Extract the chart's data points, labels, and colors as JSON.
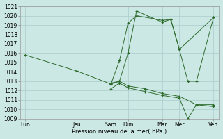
{
  "xlabel": "Pression niveau de la mer( hPa )",
  "background_color": "#cce8e4",
  "grid_color": "#aacccc",
  "line_color": "#2d6b2d",
  "x_tick_positions": [
    0,
    3,
    5,
    6,
    8,
    9,
    11
  ],
  "x_labels": [
    "Lun",
    "Jeu",
    "Sam",
    "Dim",
    "Mar",
    "Mer",
    "Ven"
  ],
  "ylim_low": 1009,
  "ylim_high": 1021,
  "yticks": [
    1009,
    1010,
    1011,
    1012,
    1013,
    1014,
    1015,
    1016,
    1017,
    1018,
    1019,
    1020,
    1021
  ],
  "s1_x": [
    0,
    3,
    5,
    5.5,
    6,
    6.5,
    8,
    8.5,
    9,
    11
  ],
  "s1_y": [
    1015.8,
    1014.1,
    1012.7,
    1015.2,
    1019.2,
    1020.0,
    1019.5,
    1019.6,
    1016.4,
    1019.8
  ],
  "s2_x": [
    5,
    5.5,
    6,
    6.5,
    8,
    8.5,
    9,
    9.5,
    10,
    11
  ],
  "s2_y": [
    1012.8,
    1013.0,
    1016.0,
    1020.5,
    1019.3,
    1019.6,
    1016.4,
    1013.0,
    1013.0,
    1019.8
  ],
  "s3_x": [
    5,
    5.5,
    6,
    7,
    8,
    9,
    10,
    11
  ],
  "s3_y": [
    1012.7,
    1013.0,
    1012.5,
    1012.2,
    1011.7,
    1011.4,
    1010.5,
    1010.5
  ],
  "s4_x": [
    5,
    5.5,
    6,
    7,
    8,
    9,
    9.5,
    10,
    11
  ],
  "s4_y": [
    1012.2,
    1012.8,
    1012.3,
    1011.9,
    1011.5,
    1011.2,
    1009.0,
    1010.5,
    1010.3
  ]
}
